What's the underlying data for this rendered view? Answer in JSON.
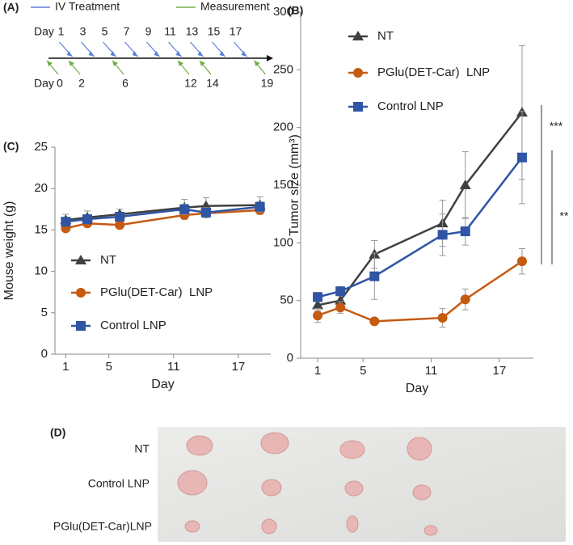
{
  "panel_labels": [
    "(A)",
    "(B)",
    "(C)",
    "(D)"
  ],
  "timeline": {
    "legend": [
      {
        "name": "IV Treatment",
        "color": "#5b7fd6"
      },
      {
        "name": "Measurement",
        "color": "#70ad47"
      }
    ],
    "day_label": "Day",
    "treatment_days": [
      1,
      3,
      5,
      7,
      9,
      11,
      13,
      15,
      17
    ],
    "measurement_days": [
      0,
      2,
      6,
      12,
      14,
      19
    ]
  },
  "chart_data": [
    {
      "type": "line",
      "y_label": "Tumor size (mm³)",
      "x_label": "Day",
      "x": [
        1,
        3,
        6,
        12,
        14,
        19
      ],
      "xlim": [
        -0.5,
        20
      ],
      "xticks": [
        1,
        5,
        11,
        17
      ],
      "ylim": [
        0,
        300
      ],
      "yticks": [
        0,
        50,
        100,
        150,
        200,
        250,
        300
      ],
      "series": [
        {
          "name": "NT",
          "color": "#404040",
          "marker": "triangle",
          "values": [
            46,
            50,
            90,
            117,
            150,
            213
          ],
          "errors": [
            5,
            5,
            12,
            20,
            29,
            58
          ]
        },
        {
          "name": "PGlu(DET-Car)  LNP",
          "color": "#c55a11",
          "marker": "circle",
          "values": [
            37,
            44,
            32,
            35,
            51,
            84
          ],
          "errors": [
            6,
            5,
            2,
            8,
            9,
            11
          ]
        },
        {
          "name": "Control LNP",
          "color": "#2f55a4",
          "marker": "square",
          "values": [
            53,
            58,
            71,
            107,
            110,
            174
          ],
          "errors": [
            4,
            4,
            20,
            18,
            12,
            40
          ]
        }
      ],
      "annotations": [
        "***",
        "**"
      ]
    },
    {
      "type": "line",
      "y_label": "Mouse weight (g)",
      "x_label": "Day",
      "x": [
        1,
        3,
        6,
        12,
        14,
        19
      ],
      "xlim": [
        0,
        20
      ],
      "xticks": [
        1,
        5,
        11,
        17
      ],
      "ylim": [
        0,
        25
      ],
      "yticks": [
        0,
        5,
        10,
        15,
        20,
        25
      ],
      "series": [
        {
          "name": "NT",
          "color": "#404040",
          "marker": "triangle",
          "values": [
            16.2,
            16.5,
            16.9,
            17.7,
            17.9,
            18.0
          ],
          "errors": [
            0.7,
            0.8,
            0.6,
            1.0,
            1.0,
            1.0
          ]
        },
        {
          "name": "PGlu(DET-Car)  LNP",
          "color": "#c55a11",
          "marker": "circle",
          "values": [
            15.2,
            15.8,
            15.6,
            16.8,
            17.0,
            17.4
          ],
          "errors": [
            0.3,
            0.4,
            0.3,
            0.5,
            0.5,
            0.5
          ]
        },
        {
          "name": "Control LNP",
          "color": "#2f55a4",
          "marker": "square",
          "values": [
            16.0,
            16.3,
            16.6,
            17.5,
            17.1,
            17.8
          ],
          "errors": [
            0.4,
            0.5,
            0.4,
            0.6,
            0.6,
            0.6
          ]
        }
      ]
    }
  ],
  "photo": {
    "labels": [
      "NT",
      "Control LNP",
      "PGlu(DET-Car)LNP"
    ]
  }
}
